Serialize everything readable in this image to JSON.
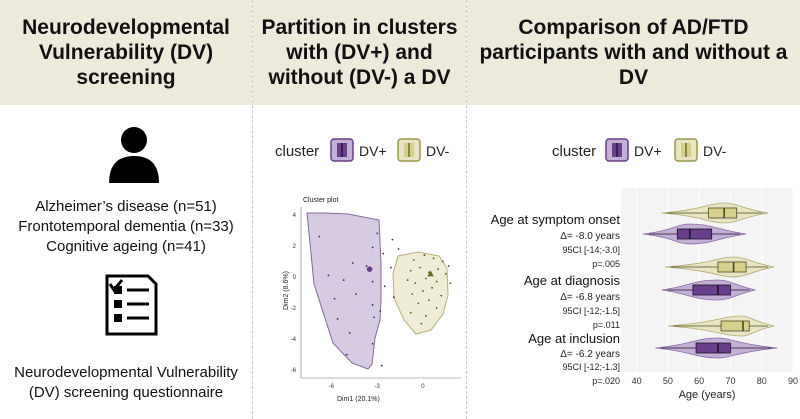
{
  "panels": {
    "screening": {
      "title": "Neurodevelopmental\nVulnerability (DV)\nscreening",
      "groups": [
        "Alzheimer’s disease (n=51)",
        "Frontotemporal dementia (n=33)",
        "Cognitive ageing (n=41)"
      ],
      "questionnaire_line1": "Neurodevelopmental Vulnerability",
      "questionnaire_line2": "(DV) screening questionnaire",
      "person_icon": "person-icon",
      "checklist_icon": "checklist-icon"
    },
    "clusters": {
      "title": "Partition in clusters with (DV+) and without (DV-) a DV",
      "legend_title": "cluster",
      "legend_dvplus": "DV+",
      "legend_dvminus": "DV-",
      "plot_title": "Cluster plot",
      "x_label": "Dim1 (20.1%)",
      "y_label": "Dim2 (8.6%)",
      "x_ticks": [
        "-6",
        "-3",
        "0"
      ],
      "y_ticks": [
        "4",
        "2",
        "0",
        "-2",
        "-4",
        "-6"
      ]
    },
    "comparison": {
      "title": "Comparison of AD/FTD participants with and without a DV",
      "legend_title": "cluster",
      "legend_dvplus": "DV+",
      "legend_dvminus": "DV-",
      "x_label": "Age (years)",
      "x_ticks": [
        "40",
        "50",
        "60",
        "70",
        "80",
        "90"
      ],
      "rows": [
        {
          "label": "Age at symptom onset",
          "delta": "Δ= -8.0 years",
          "ci": "95CI [-14;-3.0]",
          "p": "p=.005"
        },
        {
          "label": "Age at diagnosis",
          "delta": "Δ= -6.8 years",
          "ci": "95CI [-12;-1.5]",
          "p": "p=.011"
        },
        {
          "label": "Age at inclusion",
          "delta": "Δ= -6.2 years",
          "ci": "95CI [-12;-1.3]",
          "p": "p=.020"
        }
      ]
    }
  },
  "colors": {
    "header_bg": "#ede9db",
    "dvplus_fill": "#c3b0d4",
    "dvplus_dark": "#6a3f8a",
    "dvminus_fill": "#e8e5c5",
    "dvminus_dark": "#9b964e"
  },
  "chart_data": [
    {
      "type": "scatter",
      "title": "Cluster plot",
      "xlabel": "Dim1 (20.1%)",
      "ylabel": "Dim2 (8.6%)",
      "xlim": [
        -8,
        2.5
      ],
      "ylim": [
        -6.5,
        4.5
      ],
      "series": [
        {
          "name": "DV+",
          "points": [
            [
              -3.0,
              2.8
            ],
            [
              -2.0,
              2.4
            ],
            [
              -1.6,
              1.8
            ],
            [
              -3.3,
              1.9
            ],
            [
              -2.6,
              1.5
            ],
            [
              -4.6,
              0.9
            ],
            [
              -3.7,
              0.7
            ],
            [
              -2.1,
              0.6
            ],
            [
              -6.2,
              0.1
            ],
            [
              -5.2,
              -0.2
            ],
            [
              -3.3,
              -0.3
            ],
            [
              -2.5,
              -0.6
            ],
            [
              -4.4,
              -1.1
            ],
            [
              -3.3,
              -1.8
            ],
            [
              -2.8,
              -2.2
            ],
            [
              -5.6,
              -2.7
            ],
            [
              -3.2,
              -2.6
            ],
            [
              -4.8,
              -3.6
            ],
            [
              -3.3,
              -4.3
            ],
            [
              -2.7,
              -5.7
            ],
            [
              -5.0,
              -5.0
            ],
            [
              -6.8,
              2.6
            ],
            [
              -1.9,
              -1.3
            ],
            [
              -5.8,
              -1.4
            ]
          ],
          "centroid": [
            -3.5,
            0.5
          ]
        },
        {
          "name": "DV-",
          "points": [
            [
              -0.6,
              1.1
            ],
            [
              0.1,
              1.4
            ],
            [
              0.7,
              1.2
            ],
            [
              1.3,
              1.0
            ],
            [
              1.7,
              0.7
            ],
            [
              -0.8,
              0.4
            ],
            [
              -0.2,
              0.6
            ],
            [
              0.4,
              0.3
            ],
            [
              1.0,
              0.5
            ],
            [
              1.5,
              0.2
            ],
            [
              -1.0,
              -0.2
            ],
            [
              -0.5,
              -0.4
            ],
            [
              0.2,
              -0.1
            ],
            [
              0.9,
              -0.3
            ],
            [
              1.8,
              -0.4
            ],
            [
              -0.7,
              -1.1
            ],
            [
              0.0,
              -0.9
            ],
            [
              0.6,
              -0.7
            ],
            [
              1.2,
              -1.2
            ],
            [
              -0.3,
              -1.7
            ],
            [
              0.4,
              -1.5
            ],
            [
              -0.8,
              -2.3
            ],
            [
              0.2,
              -2.5
            ],
            [
              0.9,
              -2.0
            ],
            [
              -0.1,
              -3.0
            ]
          ],
          "centroid": [
            0.5,
            0.2
          ]
        }
      ]
    },
    {
      "type": "violin",
      "xlabel": "Age (years)",
      "xlim": [
        35,
        90
      ],
      "categories": [
        "Age at symptom onset",
        "Age at diagnosis",
        "Age at inclusion"
      ],
      "series": [
        {
          "name": "DV-",
          "distributions": [
            {
              "min": 48,
              "q1": 63,
              "median": 68,
              "q3": 72,
              "max": 82
            },
            {
              "min": 49,
              "q1": 66,
              "median": 71,
              "q3": 75,
              "max": 84
            },
            {
              "min": 50,
              "q1": 67,
              "median": 74,
              "q3": 76,
              "max": 84
            }
          ]
        },
        {
          "name": "DV+",
          "distributions": [
            {
              "min": 42,
              "q1": 53,
              "median": 57,
              "q3": 64,
              "max": 75
            },
            {
              "min": 48,
              "q1": 58,
              "median": 66,
              "q3": 70,
              "max": 78
            },
            {
              "min": 46,
              "q1": 59,
              "median": 66,
              "q3": 70,
              "max": 85
            }
          ]
        }
      ]
    }
  ]
}
